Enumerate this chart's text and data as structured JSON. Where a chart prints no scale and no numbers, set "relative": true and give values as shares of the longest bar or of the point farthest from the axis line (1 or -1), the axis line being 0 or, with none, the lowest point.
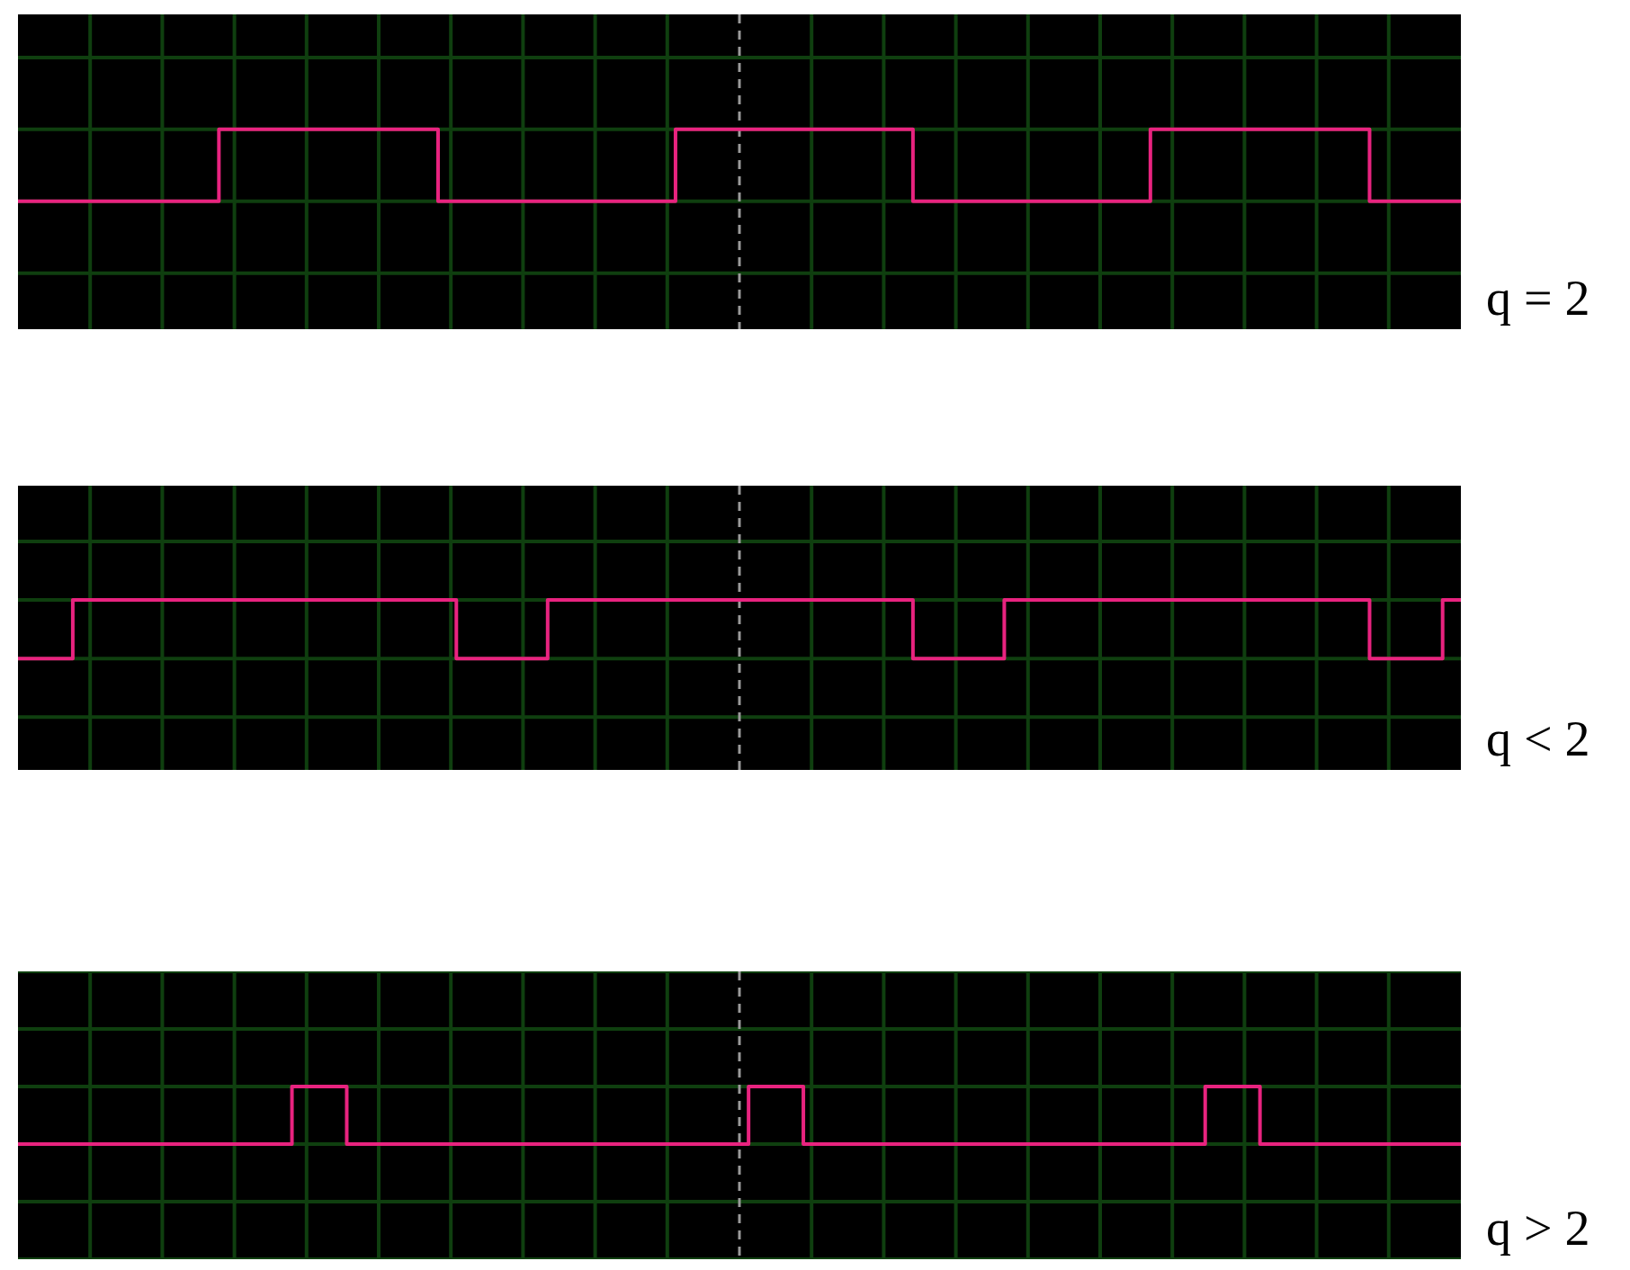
{
  "chart_data": [
    {
      "type": "step",
      "title": "q = 2",
      "relative": true,
      "grid": true,
      "categories": [
        null,
        null,
        null,
        null,
        null,
        null,
        null,
        null,
        null,
        null,
        null,
        null,
        null,
        null,
        null,
        null,
        null,
        null,
        null,
        null,
        null,
        null,
        null,
        null,
        null,
        null,
        null,
        null,
        null,
        null,
        null,
        null,
        null,
        null,
        null,
        null,
        null,
        null,
        null,
        null,
        null,
        null,
        null,
        null,
        null,
        null,
        null,
        null,
        null,
        null,
        null,
        null,
        null,
        null,
        null,
        null,
        null,
        null,
        null,
        null,
        null,
        null,
        null,
        null,
        null,
        null,
        null,
        null,
        null,
        null,
        null,
        null,
        null,
        null,
        null,
        null,
        null,
        null,
        null,
        null
      ],
      "series": [
        {
          "color": "#e8237f",
          "values": [
            0,
            0,
            0,
            0,
            0,
            0,
            0,
            0,
            0,
            0,
            0,
            0,
            1,
            1,
            1,
            1,
            1,
            1,
            1,
            1,
            1,
            1,
            1,
            1,
            0,
            0,
            0,
            0,
            0,
            0,
            0,
            0,
            0,
            0,
            0,
            0,
            0,
            1,
            1,
            1,
            1,
            1,
            1,
            1,
            1,
            1,
            1,
            1,
            1,
            1,
            0,
            0,
            0,
            0,
            0,
            0,
            0,
            0,
            0,
            0,
            0,
            0,
            0,
            1,
            1,
            1,
            1,
            1,
            1,
            1,
            1,
            1,
            1,
            1,
            1,
            0,
            0,
            0,
            0,
            0
          ]
        }
      ]
    },
    {
      "type": "step",
      "title": "q < 2",
      "relative": true,
      "grid": true,
      "categories": [
        null,
        null,
        null,
        null,
        null,
        null,
        null,
        null,
        null,
        null,
        null,
        null,
        null,
        null,
        null,
        null,
        null,
        null,
        null,
        null,
        null,
        null,
        null,
        null,
        null,
        null,
        null,
        null,
        null,
        null,
        null,
        null,
        null,
        null,
        null,
        null,
        null,
        null,
        null,
        null,
        null,
        null,
        null,
        null,
        null,
        null,
        null,
        null,
        null,
        null,
        null,
        null,
        null,
        null,
        null,
        null,
        null,
        null,
        null,
        null,
        null,
        null,
        null,
        null,
        null,
        null,
        null,
        null,
        null,
        null,
        null,
        null,
        null,
        null,
        null,
        null,
        null,
        null,
        null,
        null
      ],
      "series": [
        {
          "color": "#e8237f",
          "values": [
            0,
            0,
            0,
            0,
            1,
            1,
            1,
            1,
            1,
            1,
            1,
            1,
            1,
            1,
            1,
            1,
            1,
            1,
            1,
            1,
            1,
            1,
            1,
            1,
            1,
            0,
            0,
            0,
            0,
            0,
            1,
            1,
            1,
            1,
            1,
            1,
            1,
            1,
            1,
            1,
            1,
            1,
            1,
            1,
            1,
            1,
            1,
            1,
            1,
            1,
            0,
            0,
            0,
            0,
            0,
            1,
            1,
            1,
            1,
            1,
            1,
            1,
            1,
            1,
            1,
            1,
            1,
            1,
            1,
            1,
            1,
            1,
            1,
            1,
            1,
            0,
            0,
            0,
            0,
            1
          ]
        }
      ]
    },
    {
      "type": "step",
      "title": "q > 2",
      "relative": true,
      "grid": true,
      "categories": [
        null,
        null,
        null,
        null,
        null,
        null,
        null,
        null,
        null,
        null,
        null,
        null,
        null,
        null,
        null,
        null,
        null,
        null,
        null,
        null,
        null,
        null,
        null,
        null,
        null,
        null,
        null,
        null,
        null,
        null,
        null,
        null,
        null,
        null,
        null,
        null,
        null,
        null,
        null,
        null,
        null,
        null,
        null,
        null,
        null,
        null,
        null,
        null,
        null,
        null,
        null,
        null,
        null,
        null,
        null,
        null,
        null,
        null,
        null,
        null,
        null,
        null,
        null,
        null,
        null,
        null,
        null,
        null,
        null,
        null,
        null,
        null,
        null,
        null,
        null,
        null,
        null,
        null,
        null,
        null
      ],
      "series": [
        {
          "color": "#e8237f",
          "values": [
            0,
            0,
            0,
            0,
            0,
            0,
            0,
            0,
            0,
            0,
            0,
            0,
            0,
            0,
            0,
            0,
            1,
            1,
            1,
            0,
            0,
            0,
            0,
            0,
            0,
            0,
            0,
            0,
            0,
            0,
            0,
            0,
            0,
            0,
            0,
            0,
            0,
            0,
            0,
            0,
            0,
            1,
            1,
            1,
            0,
            0,
            0,
            0,
            0,
            0,
            0,
            0,
            0,
            0,
            0,
            0,
            0,
            0,
            0,
            0,
            0,
            0,
            0,
            0,
            0,
            0,
            1,
            1,
            1,
            0,
            0,
            0,
            0,
            0,
            0,
            0,
            0,
            0,
            0,
            0
          ]
        }
      ]
    }
  ]
}
